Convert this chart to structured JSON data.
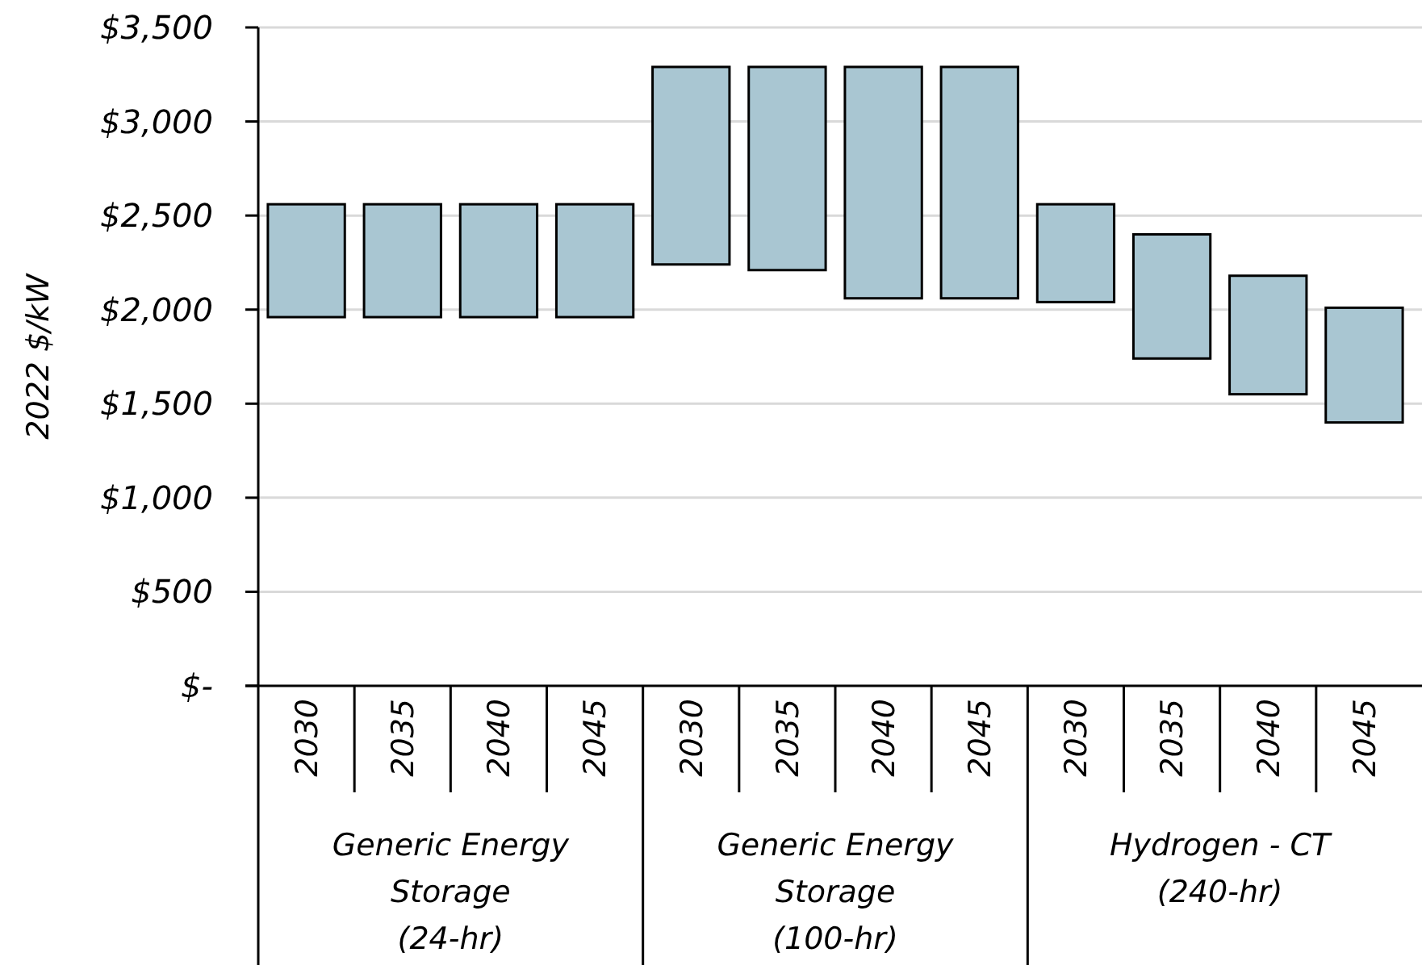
{
  "chart_data": {
    "type": "bar",
    "ylabel": "2022 $/kW",
    "categories": [
      "2030",
      "2035",
      "2040",
      "2045",
      "2030",
      "2035",
      "2040",
      "2045",
      "2030",
      "2035",
      "2040",
      "2045"
    ],
    "values": [
      600,
      600,
      600,
      600,
      1050,
      1080,
      1230,
      1230,
      520,
      660,
      630,
      610
    ],
    "base": [
      1960,
      1960,
      1960,
      1960,
      2240,
      2210,
      2060,
      2060,
      2040,
      1740,
      1550,
      1400
    ],
    "color": "#a9c6d2",
    "ylim": [
      0,
      3500
    ],
    "yticks": [
      {
        "value": 0,
        "label": "$-"
      },
      {
        "value": 500,
        "label": "$500"
      },
      {
        "value": 1000,
        "label": "$1,000"
      },
      {
        "value": 1500,
        "label": "$1,500"
      },
      {
        "value": 2000,
        "label": "$2,000"
      },
      {
        "value": 2500,
        "label": "$2,500"
      },
      {
        "value": 3000,
        "label": "$3,000"
      },
      {
        "value": 3500,
        "label": "$3,500"
      }
    ],
    "grid": "y",
    "annotations": [
      "Generic Energy\nStorage\n(24-hr)",
      "Generic Energy\nStorage\n(100-hr)",
      "Hydrogen - CT\n(240-hr)"
    ]
  }
}
